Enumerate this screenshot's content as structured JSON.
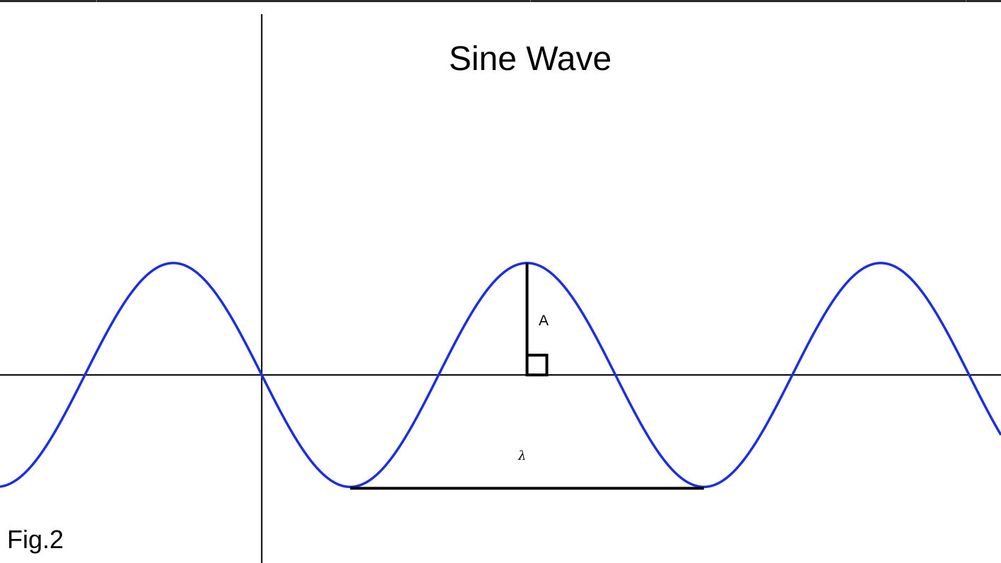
{
  "title": "Sine Wave",
  "amplitude_label": "A",
  "wavelength_label": "λ",
  "figure_label": "Fig.2",
  "colors": {
    "wave": "#1c2fe0",
    "axes": "#000000",
    "annotation": "#000000",
    "background": "#ffffff"
  },
  "chart_data": {
    "type": "line",
    "function": "sine",
    "title": "Sine Wave",
    "xlabel": "",
    "ylabel": "",
    "series": [
      {
        "amplitude": 1,
        "wavelength": 2,
        "phase_shift": 1
      }
    ],
    "xlim": [
      -1.48,
      4.18
    ],
    "ylim": [
      -1.68,
      3.35
    ],
    "grid": false,
    "legend": "none"
  }
}
